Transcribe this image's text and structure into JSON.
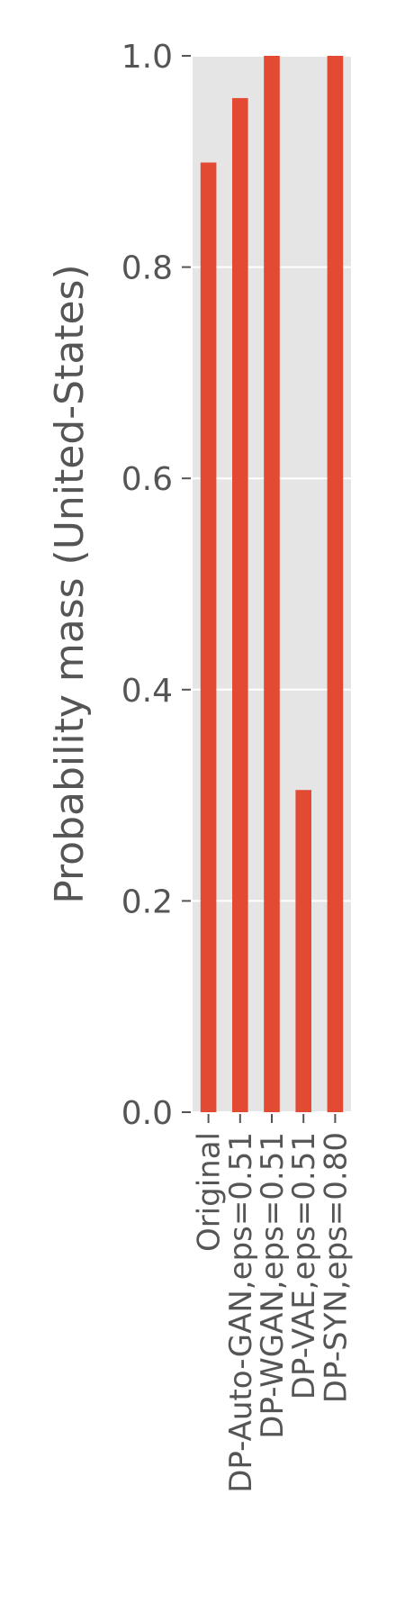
{
  "chart_data": {
    "type": "bar",
    "categories": [
      "Original",
      "DP-Auto-GAN,eps=0.51",
      "DP-WGAN,eps=0.51",
      "DP-VAE,eps=0.51",
      "DP-SYN,eps=0.80"
    ],
    "values": [
      0.899,
      0.96,
      1.0,
      0.305,
      1.0
    ],
    "title": "",
    "xlabel": "",
    "ylabel": "Probability mass (United-States)",
    "ylim": [
      0,
      1.0
    ],
    "yticks": [
      "0.0",
      "0.2",
      "0.4",
      "0.6",
      "0.8",
      "1.0"
    ],
    "grid": true,
    "colors": {
      "bar": "#e24a33",
      "background": "#e5e5e5",
      "grid": "#ffffff",
      "text": "#555555"
    }
  }
}
